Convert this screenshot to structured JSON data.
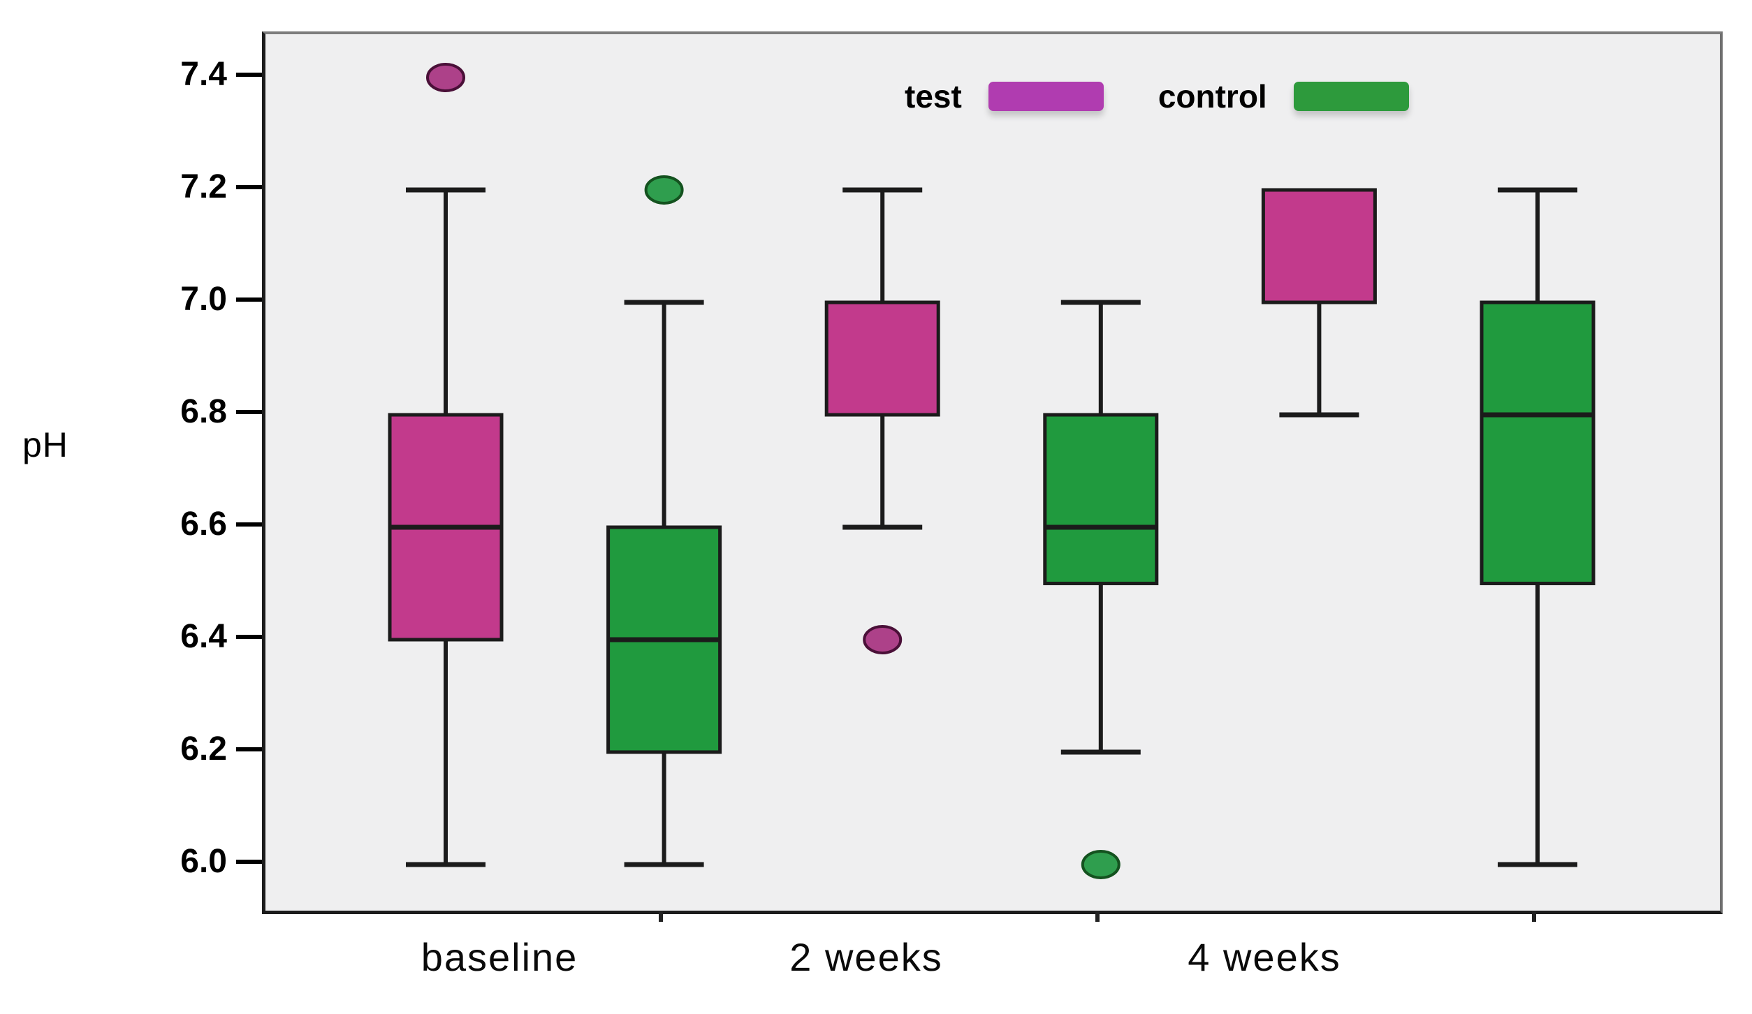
{
  "chart_data": {
    "type": "boxplot",
    "title": "",
    "xlabel": "",
    "ylabel": "pH",
    "categories": [
      "baseline",
      "2 weeks",
      "4 weeks"
    ],
    "y_ticks": [
      7.4,
      7.2,
      7.0,
      6.8,
      6.6,
      6.4,
      6.2,
      6.0
    ],
    "ylim": [
      5.92,
      7.48
    ],
    "grid": false,
    "legend_position": "top-center-inside",
    "legend": [
      {
        "label": "test",
        "color": "#b03cb0"
      },
      {
        "label": "control",
        "color": "#2d9a3c"
      }
    ],
    "colors": {
      "plot_background": "#efeff0",
      "line": "#1b1b1b",
      "test_box_fill": "#c23a8c",
      "control_box_fill": "#209a3e",
      "test_outlier_fill": "#ad4189",
      "control_outlier_fill": "#2f9e4e"
    },
    "series": [
      {
        "name": "test",
        "box_fill": "#c23a8c",
        "outlier_fill": "#ad4189",
        "outlier_stroke": "#4a1038",
        "boxes": [
          {
            "category": "baseline",
            "whisker_low": 6.0,
            "q1": 6.4,
            "median": 6.6,
            "q3": 6.8,
            "whisker_high": 7.2,
            "outliers": [
              7.4
            ]
          },
          {
            "category": "2 weeks",
            "whisker_low": 6.6,
            "q1": 6.8,
            "median": null,
            "q3": 7.0,
            "whisker_high": 7.2,
            "outliers": [
              6.4
            ]
          },
          {
            "category": "4 weeks",
            "whisker_low": 6.8,
            "q1": 7.0,
            "median": null,
            "q3": 7.2,
            "whisker_high": 7.2,
            "outliers": []
          }
        ]
      },
      {
        "name": "control",
        "box_fill": "#209a3e",
        "outlier_fill": "#2f9e4e",
        "outlier_stroke": "#14521f",
        "boxes": [
          {
            "category": "baseline",
            "whisker_low": 6.0,
            "q1": 6.2,
            "median": 6.4,
            "q3": 6.6,
            "whisker_high": 7.0,
            "outliers": [
              7.2
            ]
          },
          {
            "category": "2 weeks",
            "whisker_low": 6.2,
            "q1": 6.5,
            "median": 6.6,
            "q3": 6.8,
            "whisker_high": 7.0,
            "outliers": [
              6.0
            ]
          },
          {
            "category": "4 weeks",
            "whisker_low": 6.0,
            "q1": 6.5,
            "median": 6.8,
            "q3": 7.0,
            "whisker_high": 7.2,
            "outliers": []
          }
        ]
      }
    ]
  }
}
